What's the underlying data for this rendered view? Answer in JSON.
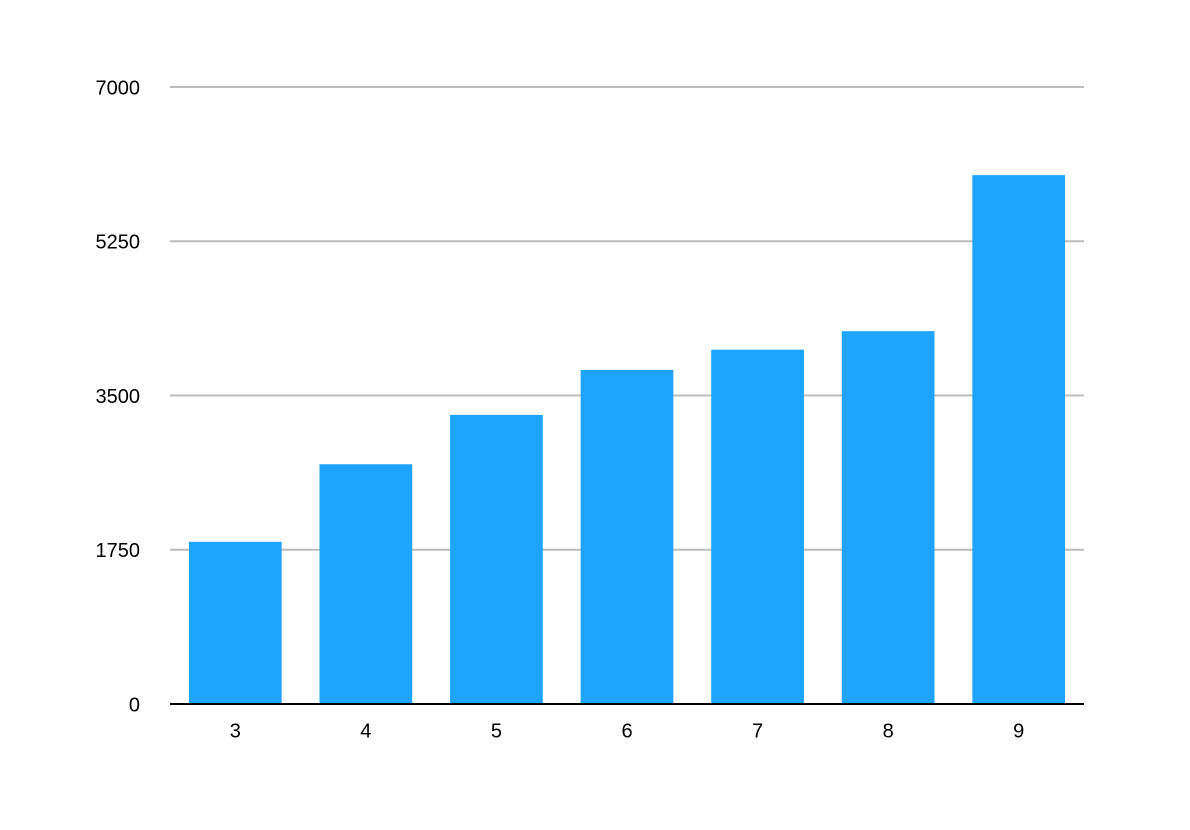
{
  "chart_data": {
    "type": "bar",
    "categories": [
      "3",
      "4",
      "5",
      "6",
      "7",
      "8",
      "9"
    ],
    "values": [
      1840,
      2720,
      3280,
      3790,
      4020,
      4230,
      6000
    ],
    "color": "#1ea4fc",
    "ylim": [
      0,
      7000
    ],
    "yticks": [
      0,
      1750,
      3500,
      5250,
      7000
    ],
    "grid": true
  }
}
